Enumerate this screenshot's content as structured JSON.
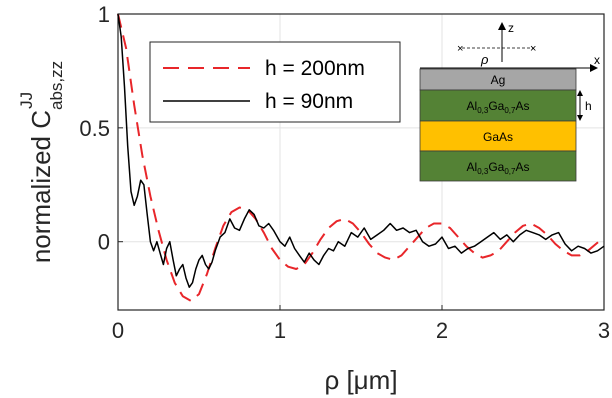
{
  "chart_data": {
    "type": "line",
    "xlabel": "ρ [μm]",
    "ylabel": "normalized C",
    "ylabel_sup": "JJ",
    "ylabel_sub": "abs,zz",
    "xlim": [
      0,
      3
    ],
    "ylim": [
      -0.3,
      1
    ],
    "xticks": [
      0,
      1,
      2,
      3
    ],
    "yticks": [
      0,
      0.5,
      1
    ],
    "xtick_labels": [
      "0",
      "1",
      "2",
      "3"
    ],
    "ytick_labels": [
      "0",
      "0.5",
      "1"
    ],
    "grid": true,
    "legend_position": "top-left",
    "series": [
      {
        "name": "h = 200nm",
        "color": "#e8262a",
        "style": "dashed",
        "x": [
          0,
          0.05,
          0.1,
          0.15,
          0.2,
          0.25,
          0.3,
          0.35,
          0.4,
          0.45,
          0.5,
          0.55,
          0.6,
          0.65,
          0.7,
          0.75,
          0.8,
          0.85,
          0.9,
          0.95,
          1.0,
          1.05,
          1.1,
          1.15,
          1.2,
          1.25,
          1.3,
          1.35,
          1.4,
          1.45,
          1.5,
          1.55,
          1.6,
          1.65,
          1.7,
          1.75,
          1.8,
          1.85,
          1.9,
          1.95,
          2.0,
          2.05,
          2.1,
          2.15,
          2.2,
          2.25,
          2.3,
          2.35,
          2.4,
          2.45,
          2.5,
          2.55,
          2.6,
          2.65,
          2.7,
          2.75,
          2.8,
          2.85,
          2.9,
          2.95,
          3.0
        ],
        "values": [
          1.0,
          0.85,
          0.6,
          0.38,
          0.2,
          0.05,
          -0.08,
          -0.18,
          -0.24,
          -0.26,
          -0.23,
          -0.14,
          -0.03,
          0.07,
          0.13,
          0.15,
          0.14,
          0.1,
          0.04,
          -0.03,
          -0.08,
          -0.11,
          -0.12,
          -0.1,
          -0.05,
          0.01,
          0.06,
          0.09,
          0.1,
          0.08,
          0.04,
          -0.01,
          -0.05,
          -0.07,
          -0.08,
          -0.06,
          -0.02,
          0.02,
          0.06,
          0.08,
          0.08,
          0.06,
          0.02,
          -0.02,
          -0.05,
          -0.07,
          -0.06,
          -0.04,
          0.0,
          0.04,
          0.07,
          0.08,
          0.06,
          0.03,
          -0.01,
          -0.04,
          -0.06,
          -0.06,
          -0.04,
          -0.01,
          0.02
        ]
      },
      {
        "name": "h = 90nm",
        "color": "#000000",
        "style": "solid",
        "x": [
          0,
          0.02,
          0.04,
          0.06,
          0.08,
          0.1,
          0.12,
          0.14,
          0.16,
          0.18,
          0.2,
          0.22,
          0.24,
          0.26,
          0.28,
          0.3,
          0.32,
          0.34,
          0.36,
          0.38,
          0.4,
          0.42,
          0.44,
          0.46,
          0.48,
          0.5,
          0.52,
          0.54,
          0.56,
          0.58,
          0.6,
          0.63,
          0.66,
          0.69,
          0.72,
          0.75,
          0.78,
          0.81,
          0.84,
          0.87,
          0.9,
          0.93,
          0.96,
          1.0,
          1.03,
          1.06,
          1.09,
          1.12,
          1.15,
          1.18,
          1.21,
          1.24,
          1.27,
          1.3,
          1.33,
          1.36,
          1.4,
          1.44,
          1.48,
          1.52,
          1.56,
          1.6,
          1.64,
          1.68,
          1.72,
          1.76,
          1.8,
          1.84,
          1.88,
          1.92,
          1.96,
          2.0,
          2.04,
          2.08,
          2.12,
          2.16,
          2.2,
          2.24,
          2.28,
          2.32,
          2.36,
          2.4,
          2.44,
          2.48,
          2.52,
          2.56,
          2.6,
          2.64,
          2.68,
          2.72,
          2.76,
          2.8,
          2.84,
          2.88,
          2.92,
          2.96,
          3.0
        ],
        "values": [
          1.0,
          0.9,
          0.68,
          0.42,
          0.22,
          0.16,
          0.2,
          0.27,
          0.25,
          0.12,
          0.0,
          -0.04,
          0.0,
          -0.05,
          -0.1,
          -0.03,
          0.0,
          -0.08,
          -0.15,
          -0.12,
          -0.1,
          -0.16,
          -0.2,
          -0.18,
          -0.12,
          -0.08,
          -0.06,
          -0.1,
          -0.12,
          -0.09,
          -0.04,
          0.02,
          0.04,
          0.1,
          0.06,
          0.05,
          0.1,
          0.14,
          0.12,
          0.07,
          0.06,
          0.08,
          0.05,
          0.0,
          -0.02,
          0.02,
          -0.03,
          -0.06,
          -0.09,
          -0.05,
          -0.08,
          -0.1,
          -0.06,
          -0.03,
          -0.04,
          0.0,
          -0.02,
          0.04,
          0.02,
          0.06,
          0.01,
          0.03,
          0.05,
          0.08,
          0.05,
          0.06,
          0.04,
          0.05,
          0.0,
          -0.02,
          -0.01,
          0.02,
          -0.03,
          -0.02,
          -0.05,
          -0.03,
          -0.02,
          0.0,
          0.02,
          0.04,
          0.01,
          0.03,
          0.0,
          0.03,
          0.05,
          0.04,
          0.03,
          0.01,
          0.03,
          0.04,
          -0.01,
          -0.04,
          -0.02,
          -0.03,
          -0.05,
          -0.04,
          -0.02
        ]
      }
    ]
  },
  "inset": {
    "axis_z": "z",
    "axis_x": "x",
    "rho": "ρ",
    "h": "h",
    "layers": [
      {
        "label": "Ag",
        "color": "#a6a6a6"
      },
      {
        "label": "Al0,3Ga0,7As",
        "color": "#548235",
        "main": "Al",
        "sub1": "0,3",
        "mid": "Ga",
        "sub2": "0,7",
        "tail": "As"
      },
      {
        "label": "GaAs",
        "color": "#ffc000"
      },
      {
        "label": "Al0,3Ga0,7As",
        "color": "#548235",
        "main": "Al",
        "sub1": "0,3",
        "mid": "Ga",
        "sub2": "0,7",
        "tail": "As"
      }
    ]
  }
}
